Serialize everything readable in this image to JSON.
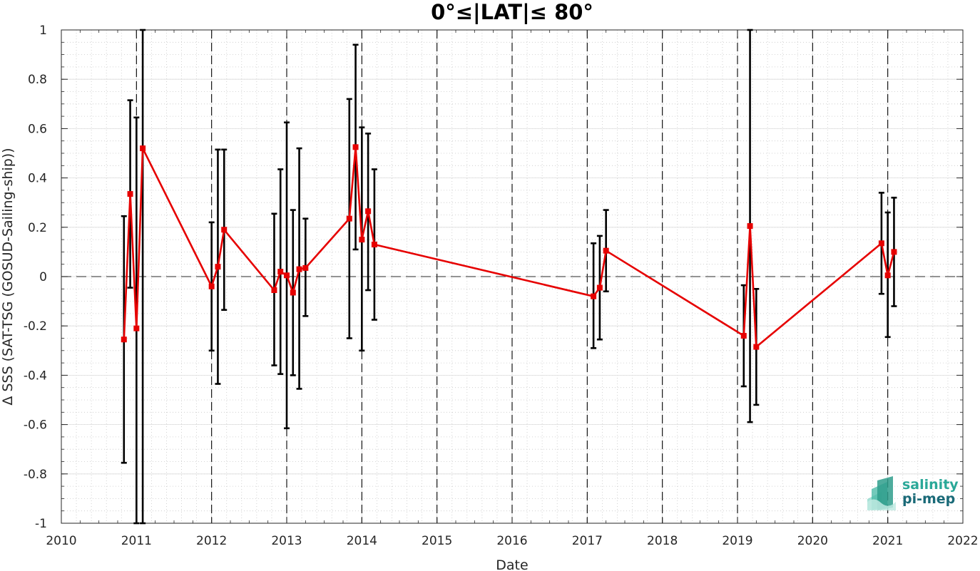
{
  "chart_data": {
    "type": "line",
    "title": "0°≤|LAT|≤ 80°",
    "xlabel": "Date",
    "ylabel": "Δ SSS (SAT-TSG (GOSUD-Sailing-ship))",
    "xlim": [
      2010,
      2022
    ],
    "ylim": [
      -1,
      1
    ],
    "x_ticks": [
      "2010",
      "2011",
      "2012",
      "2013",
      "2014",
      "2015",
      "2016",
      "2017",
      "2018",
      "2019",
      "2020",
      "2021",
      "2022"
    ],
    "y_ticks": [
      "-1",
      "-0.8",
      "-0.6",
      "-0.4",
      "-0.2",
      "0",
      "0.2",
      "0.4",
      "0.6",
      "0.8",
      "1"
    ],
    "grid": true,
    "minor_grid": true,
    "reference_line_y": 0,
    "year_boundaries": [
      2011,
      2012,
      2013,
      2014,
      2015,
      2016,
      2017,
      2018,
      2019,
      2020,
      2021
    ],
    "series": [
      {
        "color": "#e60000",
        "errorbar_color": "#000000",
        "points": [
          {
            "x": "2010-11",
            "y": -0.255,
            "low": -0.755,
            "high": 0.245
          },
          {
            "x": "2010-12",
            "y": 0.335,
            "low": -0.045,
            "high": 0.715
          },
          {
            "x": "2011-01",
            "y": -0.21,
            "low": -1.0,
            "high": 0.645
          },
          {
            "x": "2011-02",
            "y": 0.52,
            "low": -1.0,
            "high": 1.0
          },
          {
            "x": "2012-01",
            "y": -0.04,
            "low": -0.3,
            "high": 0.22
          },
          {
            "x": "2012-02",
            "y": 0.04,
            "low": -0.435,
            "high": 0.515
          },
          {
            "x": "2012-03",
            "y": 0.19,
            "low": -0.135,
            "high": 0.515
          },
          {
            "x": "2012-11",
            "y": -0.055,
            "low": -0.36,
            "high": 0.255
          },
          {
            "x": "2012-12",
            "y": 0.02,
            "low": -0.395,
            "high": 0.435
          },
          {
            "x": "2013-01",
            "y": 0.005,
            "low": -0.615,
            "high": 0.625
          },
          {
            "x": "2013-02",
            "y": -0.065,
            "low": -0.4,
            "high": 0.27
          },
          {
            "x": "2013-03",
            "y": 0.03,
            "low": -0.455,
            "high": 0.52
          },
          {
            "x": "2013-04",
            "y": 0.035,
            "low": -0.16,
            "high": 0.235
          },
          {
            "x": "2013-11",
            "y": 0.235,
            "low": -0.25,
            "high": 0.72
          },
          {
            "x": "2013-12",
            "y": 0.525,
            "low": 0.11,
            "high": 0.94
          },
          {
            "x": "2014-01",
            "y": 0.15,
            "low": -0.3,
            "high": 0.605
          },
          {
            "x": "2014-02",
            "y": 0.265,
            "low": -0.055,
            "high": 0.58
          },
          {
            "x": "2014-03",
            "y": 0.13,
            "low": -0.175,
            "high": 0.435
          },
          {
            "x": "2017-02",
            "y": -0.08,
            "low": -0.29,
            "high": 0.135
          },
          {
            "x": "2017-03",
            "y": -0.045,
            "low": -0.255,
            "high": 0.165
          },
          {
            "x": "2017-04",
            "y": 0.105,
            "low": -0.06,
            "high": 0.27
          },
          {
            "x": "2019-02",
            "y": -0.24,
            "low": -0.445,
            "high": -0.035
          },
          {
            "x": "2019-03",
            "y": 0.205,
            "low": -0.59,
            "high": 1.0
          },
          {
            "x": "2019-04",
            "y": -0.285,
            "low": -0.52,
            "high": -0.05
          },
          {
            "x": "2020-12",
            "y": 0.135,
            "low": -0.07,
            "high": 0.34
          },
          {
            "x": "2021-01",
            "y": 0.005,
            "low": -0.245,
            "high": 0.26
          },
          {
            "x": "2021-02",
            "y": 0.1,
            "low": -0.12,
            "high": 0.32
          }
        ]
      }
    ]
  },
  "logo": {
    "line1": "salinity",
    "line2": "pi-mep",
    "color1": "#2aa898",
    "color2": "#1a6a78"
  }
}
